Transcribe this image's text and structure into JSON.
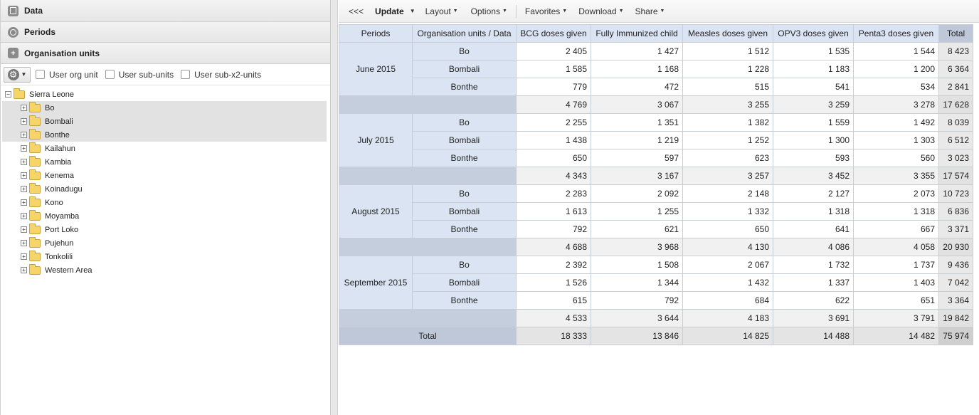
{
  "left_panel": {
    "accordion": {
      "data_label": "Data",
      "periods_label": "Periods",
      "org_units_label": "Organisation units"
    },
    "org_toolbar": {
      "user_org_unit": "User org unit",
      "user_sub_units": "User sub-units",
      "user_sub_x2_units": "User sub-x2-units"
    },
    "tree": {
      "root": "Sierra Leone",
      "children": [
        {
          "label": "Bo",
          "selected": true
        },
        {
          "label": "Bombali",
          "selected": true
        },
        {
          "label": "Bonthe",
          "selected": true
        },
        {
          "label": "Kailahun",
          "selected": false
        },
        {
          "label": "Kambia",
          "selected": false
        },
        {
          "label": "Kenema",
          "selected": false
        },
        {
          "label": "Koinadugu",
          "selected": false
        },
        {
          "label": "Kono",
          "selected": false
        },
        {
          "label": "Moyamba",
          "selected": false
        },
        {
          "label": "Port Loko",
          "selected": false
        },
        {
          "label": "Pujehun",
          "selected": false
        },
        {
          "label": "Tonkolili",
          "selected": false
        },
        {
          "label": "Western Area",
          "selected": false
        }
      ]
    }
  },
  "toolbar": {
    "collapse": "<<<",
    "update": "Update",
    "layout": "Layout",
    "options": "Options",
    "favorites": "Favorites",
    "download": "Download",
    "share": "Share"
  },
  "pivot": {
    "header": {
      "periods": "Periods",
      "ou_data": "Organisation units / Data",
      "columns": [
        "BCG doses given",
        "Fully Immunized child",
        "Measles doses given",
        "OPV3 doses given",
        "Penta3 doses given"
      ],
      "total": "Total"
    },
    "groups": [
      {
        "period": "June 2015",
        "rows": [
          {
            "ou": "Bo",
            "values": [
              "2 405",
              "1 427",
              "1 512",
              "1 535",
              "1 544"
            ],
            "total": "8 423"
          },
          {
            "ou": "Bombali",
            "values": [
              "1 585",
              "1 168",
              "1 228",
              "1 183",
              "1 200"
            ],
            "total": "6 364"
          },
          {
            "ou": "Bonthe",
            "values": [
              "779",
              "472",
              "515",
              "541",
              "534"
            ],
            "total": "2 841"
          }
        ],
        "subtotal": {
          "values": [
            "4 769",
            "3 067",
            "3 255",
            "3 259",
            "3 278"
          ],
          "total": "17 628"
        }
      },
      {
        "period": "July 2015",
        "rows": [
          {
            "ou": "Bo",
            "values": [
              "2 255",
              "1 351",
              "1 382",
              "1 559",
              "1 492"
            ],
            "total": "8 039"
          },
          {
            "ou": "Bombali",
            "values": [
              "1 438",
              "1 219",
              "1 252",
              "1 300",
              "1 303"
            ],
            "total": "6 512"
          },
          {
            "ou": "Bonthe",
            "values": [
              "650",
              "597",
              "623",
              "593",
              "560"
            ],
            "total": "3 023"
          }
        ],
        "subtotal": {
          "values": [
            "4 343",
            "3 167",
            "3 257",
            "3 452",
            "3 355"
          ],
          "total": "17 574"
        }
      },
      {
        "period": "August 2015",
        "rows": [
          {
            "ou": "Bo",
            "values": [
              "2 283",
              "2 092",
              "2 148",
              "2 127",
              "2 073"
            ],
            "total": "10 723"
          },
          {
            "ou": "Bombali",
            "values": [
              "1 613",
              "1 255",
              "1 332",
              "1 318",
              "1 318"
            ],
            "total": "6 836"
          },
          {
            "ou": "Bonthe",
            "values": [
              "792",
              "621",
              "650",
              "641",
              "667"
            ],
            "total": "3 371"
          }
        ],
        "subtotal": {
          "values": [
            "4 688",
            "3 968",
            "4 130",
            "4 086",
            "4 058"
          ],
          "total": "20 930"
        }
      },
      {
        "period": "September 2015",
        "rows": [
          {
            "ou": "Bo",
            "values": [
              "2 392",
              "1 508",
              "2 067",
              "1 732",
              "1 737"
            ],
            "total": "9 436"
          },
          {
            "ou": "Bombali",
            "values": [
              "1 526",
              "1 344",
              "1 432",
              "1 337",
              "1 403"
            ],
            "total": "7 042"
          },
          {
            "ou": "Bonthe",
            "values": [
              "615",
              "792",
              "684",
              "622",
              "651"
            ],
            "total": "3 364"
          }
        ],
        "subtotal": {
          "values": [
            "4 533",
            "3 644",
            "4 183",
            "3 691",
            "3 791"
          ],
          "total": "19 842"
        }
      }
    ],
    "grand_total": {
      "label": "Total",
      "values": [
        "18 333",
        "13 846",
        "14 825",
        "14 488",
        "14 482"
      ],
      "total": "75 974"
    }
  }
}
